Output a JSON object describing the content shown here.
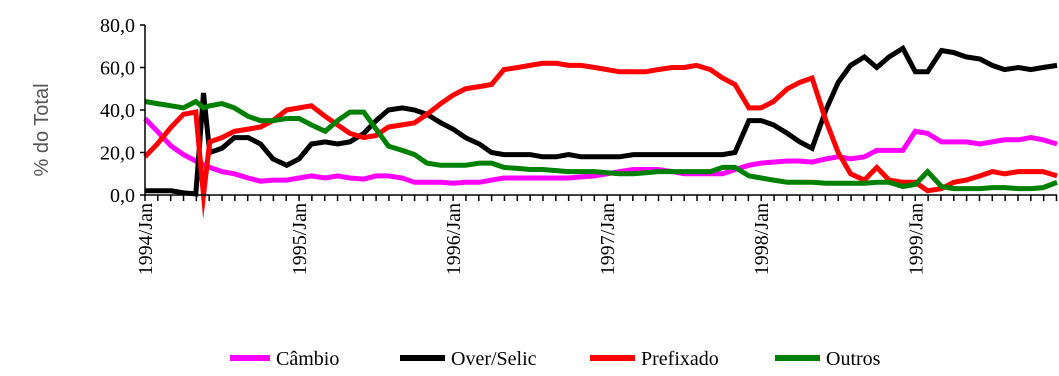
{
  "chart_data": {
    "type": "line",
    "ylabel": "% do Total",
    "ylim": [
      0,
      80
    ],
    "y_ticks": [
      "0,0",
      "20,0",
      "40,0",
      "60,0",
      "80,0"
    ],
    "x_tick_labels": [
      {
        "label": "1994/Jan",
        "x": 1994.0
      },
      {
        "label": "1995/Jan",
        "x": 1995.0
      },
      {
        "label": "1996/Jan",
        "x": 1996.0
      },
      {
        "label": "1997/Jan",
        "x": 1997.0
      },
      {
        "label": "1998/Jan",
        "x": 1998.0
      },
      {
        "label": "1999/Jan",
        "x": 1999.0
      }
    ],
    "x_range": [
      1994.0,
      1999.92
    ],
    "legend_position": "bottom",
    "series": [
      {
        "name": "Câmbio",
        "color": "#ff00ff",
        "points": [
          [
            1994.0,
            36
          ],
          [
            1994.08,
            30
          ],
          [
            1994.17,
            23
          ],
          [
            1994.25,
            19
          ],
          [
            1994.33,
            16
          ],
          [
            1994.42,
            13
          ],
          [
            1994.5,
            11
          ],
          [
            1994.58,
            10
          ],
          [
            1994.67,
            8
          ],
          [
            1994.75,
            6.5
          ],
          [
            1994.83,
            7
          ],
          [
            1994.92,
            7
          ],
          [
            1995.0,
            8
          ],
          [
            1995.08,
            9
          ],
          [
            1995.17,
            8
          ],
          [
            1995.25,
            9
          ],
          [
            1995.33,
            8
          ],
          [
            1995.42,
            7.5
          ],
          [
            1995.5,
            9
          ],
          [
            1995.58,
            9
          ],
          [
            1995.67,
            8
          ],
          [
            1995.75,
            6
          ],
          [
            1995.83,
            6
          ],
          [
            1995.92,
            6
          ],
          [
            1996.0,
            5.5
          ],
          [
            1996.08,
            6
          ],
          [
            1996.17,
            6
          ],
          [
            1996.25,
            7
          ],
          [
            1996.33,
            8
          ],
          [
            1996.42,
            8
          ],
          [
            1996.5,
            8
          ],
          [
            1996.58,
            8
          ],
          [
            1996.67,
            8
          ],
          [
            1996.75,
            8
          ],
          [
            1996.83,
            8.5
          ],
          [
            1996.92,
            9
          ],
          [
            1997.0,
            10
          ],
          [
            1997.08,
            11
          ],
          [
            1997.17,
            12
          ],
          [
            1997.25,
            12
          ],
          [
            1997.33,
            12
          ],
          [
            1997.42,
            11
          ],
          [
            1997.5,
            10
          ],
          [
            1997.58,
            10
          ],
          [
            1997.67,
            10
          ],
          [
            1997.75,
            10
          ],
          [
            1997.83,
            12
          ],
          [
            1997.92,
            14
          ],
          [
            1998.0,
            15
          ],
          [
            1998.08,
            15.5
          ],
          [
            1998.17,
            16
          ],
          [
            1998.25,
            16
          ],
          [
            1998.33,
            15.5
          ],
          [
            1998.42,
            17
          ],
          [
            1998.5,
            18
          ],
          [
            1998.58,
            17
          ],
          [
            1998.67,
            18
          ],
          [
            1998.75,
            21
          ],
          [
            1998.83,
            21
          ],
          [
            1998.92,
            21
          ],
          [
            1999.0,
            30
          ],
          [
            1999.08,
            29
          ],
          [
            1999.17,
            25
          ],
          [
            1999.25,
            25
          ],
          [
            1999.33,
            25
          ],
          [
            1999.42,
            24
          ],
          [
            1999.5,
            25
          ],
          [
            1999.58,
            26
          ],
          [
            1999.67,
            26
          ],
          [
            1999.75,
            27
          ],
          [
            1999.83,
            26
          ],
          [
            1999.92,
            24
          ]
        ]
      },
      {
        "name": "Over/Selic",
        "color": "#000000",
        "points": [
          [
            1994.0,
            2
          ],
          [
            1994.08,
            2
          ],
          [
            1994.17,
            2
          ],
          [
            1994.25,
            1
          ],
          [
            1994.33,
            0.5
          ],
          [
            1994.38,
            48
          ],
          [
            1994.42,
            20
          ],
          [
            1994.5,
            22
          ],
          [
            1994.58,
            27
          ],
          [
            1994.67,
            27
          ],
          [
            1994.75,
            24
          ],
          [
            1994.83,
            17
          ],
          [
            1994.92,
            14
          ],
          [
            1995.0,
            17
          ],
          [
            1995.08,
            24
          ],
          [
            1995.17,
            25
          ],
          [
            1995.25,
            24
          ],
          [
            1995.33,
            25
          ],
          [
            1995.42,
            29
          ],
          [
            1995.5,
            35
          ],
          [
            1995.58,
            40
          ],
          [
            1995.67,
            41
          ],
          [
            1995.75,
            40
          ],
          [
            1995.83,
            38
          ],
          [
            1995.92,
            34
          ],
          [
            1996.0,
            31
          ],
          [
            1996.08,
            27
          ],
          [
            1996.17,
            24
          ],
          [
            1996.25,
            20
          ],
          [
            1996.33,
            19
          ],
          [
            1996.42,
            19
          ],
          [
            1996.5,
            19
          ],
          [
            1996.58,
            18
          ],
          [
            1996.67,
            18
          ],
          [
            1996.75,
            19
          ],
          [
            1996.83,
            18
          ],
          [
            1996.92,
            18
          ],
          [
            1997.0,
            18
          ],
          [
            1997.08,
            18
          ],
          [
            1997.17,
            19
          ],
          [
            1997.25,
            19
          ],
          [
            1997.33,
            19
          ],
          [
            1997.42,
            19
          ],
          [
            1997.5,
            19
          ],
          [
            1997.58,
            19
          ],
          [
            1997.67,
            19
          ],
          [
            1997.75,
            19
          ],
          [
            1997.83,
            20
          ],
          [
            1997.92,
            35
          ],
          [
            1998.0,
            35
          ],
          [
            1998.08,
            33
          ],
          [
            1998.17,
            29
          ],
          [
            1998.25,
            25
          ],
          [
            1998.33,
            22
          ],
          [
            1998.42,
            40
          ],
          [
            1998.5,
            53
          ],
          [
            1998.58,
            61
          ],
          [
            1998.67,
            65
          ],
          [
            1998.75,
            60
          ],
          [
            1998.83,
            65
          ],
          [
            1998.92,
            69
          ],
          [
            1999.0,
            58
          ],
          [
            1999.08,
            58
          ],
          [
            1999.17,
            68
          ],
          [
            1999.25,
            67
          ],
          [
            1999.33,
            65
          ],
          [
            1999.42,
            64
          ],
          [
            1999.5,
            61
          ],
          [
            1999.58,
            59
          ],
          [
            1999.67,
            60
          ],
          [
            1999.75,
            59
          ],
          [
            1999.83,
            60
          ],
          [
            1999.92,
            61
          ]
        ]
      },
      {
        "name": "Prefixado",
        "color": "#ff0000",
        "points": [
          [
            1994.0,
            18
          ],
          [
            1994.08,
            24
          ],
          [
            1994.17,
            32
          ],
          [
            1994.25,
            38
          ],
          [
            1994.33,
            39
          ],
          [
            1994.38,
            0
          ],
          [
            1994.42,
            25
          ],
          [
            1994.5,
            27
          ],
          [
            1994.58,
            30
          ],
          [
            1994.67,
            31
          ],
          [
            1994.75,
            32
          ],
          [
            1994.83,
            35
          ],
          [
            1994.92,
            40
          ],
          [
            1995.0,
            41
          ],
          [
            1995.08,
            42
          ],
          [
            1995.17,
            37
          ],
          [
            1995.25,
            33
          ],
          [
            1995.33,
            29
          ],
          [
            1995.42,
            27
          ],
          [
            1995.5,
            28
          ],
          [
            1995.58,
            32
          ],
          [
            1995.67,
            33
          ],
          [
            1995.75,
            34
          ],
          [
            1995.83,
            38
          ],
          [
            1995.92,
            43
          ],
          [
            1996.0,
            47
          ],
          [
            1996.08,
            50
          ],
          [
            1996.17,
            51
          ],
          [
            1996.25,
            52
          ],
          [
            1996.33,
            59
          ],
          [
            1996.42,
            60
          ],
          [
            1996.5,
            61
          ],
          [
            1996.58,
            62
          ],
          [
            1996.67,
            62
          ],
          [
            1996.75,
            61
          ],
          [
            1996.83,
            61
          ],
          [
            1996.92,
            60
          ],
          [
            1997.0,
            59
          ],
          [
            1997.08,
            58
          ],
          [
            1997.17,
            58
          ],
          [
            1997.25,
            58
          ],
          [
            1997.33,
            59
          ],
          [
            1997.42,
            60
          ],
          [
            1997.5,
            60
          ],
          [
            1997.58,
            61
          ],
          [
            1997.67,
            59
          ],
          [
            1997.75,
            55
          ],
          [
            1997.83,
            52
          ],
          [
            1997.92,
            41
          ],
          [
            1998.0,
            41
          ],
          [
            1998.08,
            44
          ],
          [
            1998.17,
            50
          ],
          [
            1998.25,
            53
          ],
          [
            1998.33,
            55
          ],
          [
            1998.42,
            35
          ],
          [
            1998.5,
            20
          ],
          [
            1998.58,
            10
          ],
          [
            1998.67,
            7
          ],
          [
            1998.75,
            13
          ],
          [
            1998.83,
            7
          ],
          [
            1998.92,
            6
          ],
          [
            1999.0,
            6
          ],
          [
            1999.08,
            2
          ],
          [
            1999.17,
            3
          ],
          [
            1999.25,
            6
          ],
          [
            1999.33,
            7
          ],
          [
            1999.42,
            9
          ],
          [
            1999.5,
            11
          ],
          [
            1999.58,
            10
          ],
          [
            1999.67,
            11
          ],
          [
            1999.75,
            11
          ],
          [
            1999.83,
            11
          ],
          [
            1999.92,
            9
          ]
        ]
      },
      {
        "name": "Outros",
        "color": "#008000",
        "points": [
          [
            1994.0,
            44
          ],
          [
            1994.08,
            43
          ],
          [
            1994.17,
            42
          ],
          [
            1994.25,
            41
          ],
          [
            1994.33,
            44
          ],
          [
            1994.38,
            41
          ],
          [
            1994.42,
            42
          ],
          [
            1994.5,
            43
          ],
          [
            1994.58,
            41
          ],
          [
            1994.67,
            37
          ],
          [
            1994.75,
            35
          ],
          [
            1994.83,
            35
          ],
          [
            1994.92,
            36
          ],
          [
            1995.0,
            36
          ],
          [
            1995.08,
            33
          ],
          [
            1995.17,
            30
          ],
          [
            1995.25,
            35
          ],
          [
            1995.33,
            39
          ],
          [
            1995.42,
            39
          ],
          [
            1995.5,
            31
          ],
          [
            1995.58,
            23
          ],
          [
            1995.67,
            21
          ],
          [
            1995.75,
            19
          ],
          [
            1995.83,
            15
          ],
          [
            1995.92,
            14
          ],
          [
            1996.0,
            14
          ],
          [
            1996.08,
            14
          ],
          [
            1996.17,
            15
          ],
          [
            1996.25,
            15
          ],
          [
            1996.33,
            13
          ],
          [
            1996.42,
            12.5
          ],
          [
            1996.5,
            12
          ],
          [
            1996.58,
            12
          ],
          [
            1996.67,
            11.5
          ],
          [
            1996.75,
            11
          ],
          [
            1996.83,
            11
          ],
          [
            1996.92,
            11
          ],
          [
            1997.0,
            10.5
          ],
          [
            1997.08,
            10
          ],
          [
            1997.17,
            10
          ],
          [
            1997.25,
            10.5
          ],
          [
            1997.33,
            11
          ],
          [
            1997.42,
            11
          ],
          [
            1997.5,
            11
          ],
          [
            1997.58,
            11
          ],
          [
            1997.67,
            11
          ],
          [
            1997.75,
            13
          ],
          [
            1997.83,
            13
          ],
          [
            1997.92,
            9
          ],
          [
            1998.0,
            8
          ],
          [
            1998.08,
            7
          ],
          [
            1998.17,
            6
          ],
          [
            1998.25,
            6
          ],
          [
            1998.33,
            6
          ],
          [
            1998.42,
            5.5
          ],
          [
            1998.5,
            5.5
          ],
          [
            1998.58,
            5.5
          ],
          [
            1998.67,
            5.5
          ],
          [
            1998.75,
            6
          ],
          [
            1998.83,
            6
          ],
          [
            1998.92,
            4
          ],
          [
            1999.0,
            5
          ],
          [
            1999.08,
            11
          ],
          [
            1999.17,
            4
          ],
          [
            1999.25,
            3
          ],
          [
            1999.33,
            3
          ],
          [
            1999.42,
            3
          ],
          [
            1999.5,
            3.5
          ],
          [
            1999.58,
            3.5
          ],
          [
            1999.67,
            3
          ],
          [
            1999.75,
            3
          ],
          [
            1999.83,
            3.5
          ],
          [
            1999.92,
            6
          ]
        ]
      }
    ]
  }
}
